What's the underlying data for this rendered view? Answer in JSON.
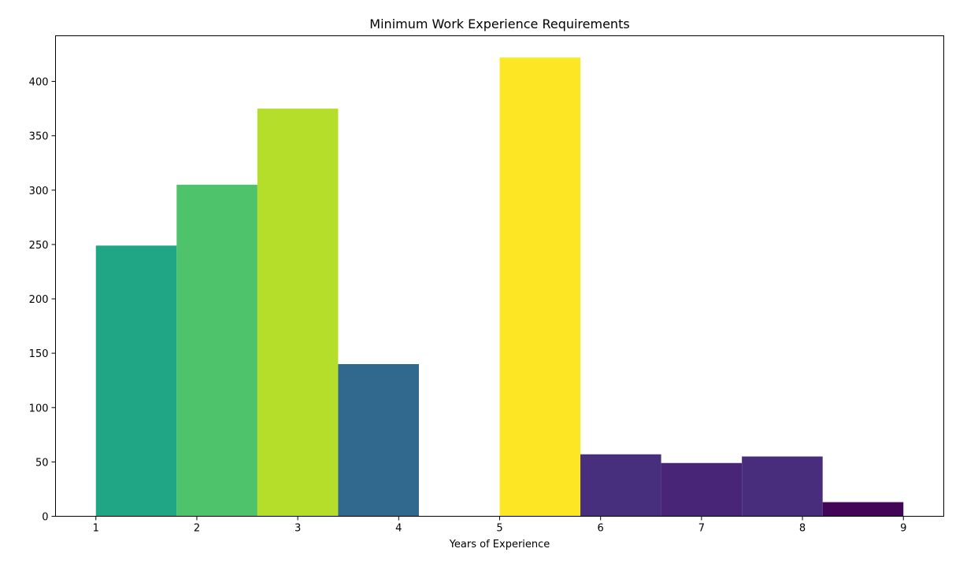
{
  "chart_data": {
    "type": "bar",
    "title": "Minimum Work Experience Requirements",
    "xlabel": "Years of Experience",
    "ylabel": "",
    "xlim": [
      0.6,
      9.4
    ],
    "ylim": [
      0,
      442
    ],
    "xticks": [
      1,
      2,
      3,
      4,
      5,
      6,
      7,
      8,
      9
    ],
    "yticks": [
      0,
      50,
      100,
      150,
      200,
      250,
      300,
      350,
      400
    ],
    "bin_edges": [
      1.0,
      1.8,
      2.6,
      3.4,
      4.2,
      5.0,
      5.8,
      6.6,
      7.4,
      8.2,
      9.0
    ],
    "values": [
      249,
      305,
      375,
      140,
      0,
      422,
      57,
      49,
      55,
      13
    ],
    "colors": [
      "#21a685",
      "#4ec36b",
      "#b5de2b",
      "#31688e",
      "#ffffff",
      "#fde725",
      "#472f7d",
      "#482576",
      "#472d7b",
      "#440558"
    ],
    "grid": false,
    "legend": "none"
  }
}
